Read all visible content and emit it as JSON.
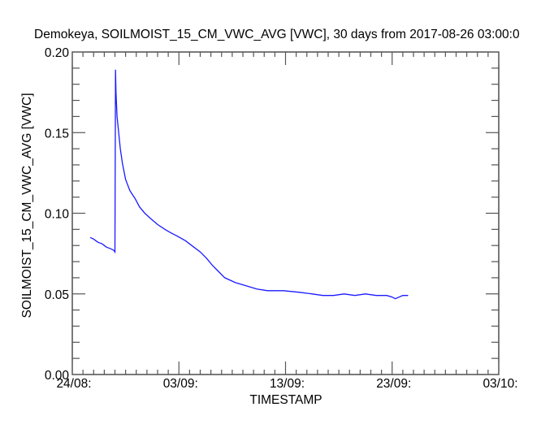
{
  "chart_data": {
    "type": "line",
    "title": "Demokeya, SOILMOIST_15_CM_VWC_AVG [VWC], 30 days from  2017-08-26 03:00:0",
    "xlabel": "TIMESTAMP",
    "ylabel": "SOILMOIST_15_CM_VWC_AVG [VWC]",
    "x_unit": "days since 24/08",
    "xlim": [
      0,
      40
    ],
    "ylim": [
      0.0,
      0.2
    ],
    "x_ticks": [
      {
        "value": 0,
        "label": "24/08:"
      },
      {
        "value": 10,
        "label": "03/09:"
      },
      {
        "value": 20,
        "label": "13/09:"
      },
      {
        "value": 30,
        "label": "23/09:"
      },
      {
        "value": 40,
        "label": "03/10:"
      }
    ],
    "x_minor_step": 1,
    "y_ticks": [
      {
        "value": 0.0,
        "label": "0.00"
      },
      {
        "value": 0.05,
        "label": "0.05"
      },
      {
        "value": 0.1,
        "label": "0.10"
      },
      {
        "value": 0.15,
        "label": "0.15"
      },
      {
        "value": 0.2,
        "label": "0.20"
      }
    ],
    "y_minor_step": 0.01,
    "grid": false,
    "legend": "none",
    "series": [
      {
        "name": "SOILMOIST_15_CM_VWC_AVG",
        "color": "#1a1aff",
        "x": [
          1.68,
          2.0,
          2.4,
          2.8,
          3.2,
          3.6,
          3.9,
          4.0,
          4.05,
          4.1,
          4.2,
          4.35,
          4.5,
          4.7,
          5.0,
          5.4,
          5.9,
          6.3,
          6.8,
          7.3,
          8.0,
          8.7,
          9.2,
          9.8,
          10.6,
          11.4,
          12.0,
          12.6,
          13.1,
          13.7,
          14.3,
          15.3,
          16.3,
          17.3,
          18.3,
          19.8,
          21.3,
          22.5,
          23.5,
          24.5,
          25.5,
          26.5,
          27.5,
          28.5,
          29.5,
          30.0,
          30.3,
          31.0,
          31.5
        ],
        "y": [
          0.085,
          0.084,
          0.082,
          0.081,
          0.079,
          0.078,
          0.077,
          0.076,
          0.189,
          0.175,
          0.16,
          0.15,
          0.14,
          0.131,
          0.121,
          0.114,
          0.109,
          0.104,
          0.1,
          0.097,
          0.093,
          0.09,
          0.088,
          0.086,
          0.083,
          0.079,
          0.076,
          0.072,
          0.068,
          0.064,
          0.06,
          0.057,
          0.055,
          0.053,
          0.052,
          0.052,
          0.051,
          0.05,
          0.049,
          0.049,
          0.05,
          0.049,
          0.05,
          0.049,
          0.049,
          0.048,
          0.047,
          0.049,
          0.049
        ]
      }
    ]
  }
}
